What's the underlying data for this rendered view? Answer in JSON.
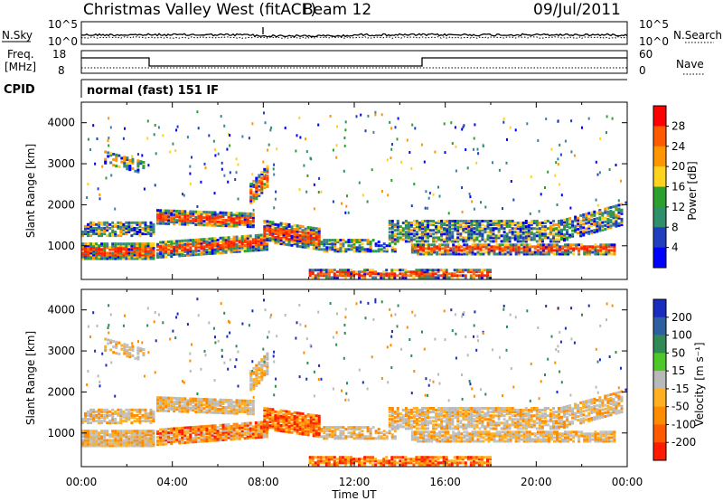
{
  "header": {
    "station": "Christmas Valley West (fitACF)",
    "beam": "Beam 12",
    "date": "09/Jul/2011"
  },
  "top_strip": {
    "nsky_label": "N.Sky",
    "nsky_ticks": [
      "10^5",
      "10^0"
    ],
    "nsearch_label": "N.Search",
    "nsearch_ticks": [
      "10^5",
      "10^0"
    ],
    "freq_label_line1": "Freq.",
    "freq_label_line2": "[MHz]",
    "freq_ticks": [
      "18",
      "8"
    ],
    "nave_label": "Nave",
    "nave_ticks": [
      "60",
      "0"
    ],
    "cpid_label": "CPID",
    "cpid_text": "normal (fast) 151 IF"
  },
  "chart_data": [
    {
      "type": "heatmap",
      "name": "power",
      "ylabel": "Slant Range [km]",
      "yticks": [
        "4000",
        "3000",
        "2000",
        "1000"
      ],
      "yticks_values": [
        4000,
        3000,
        2000,
        1000
      ],
      "ylim": [
        180,
        4500
      ],
      "xlim_hours": [
        0,
        24
      ],
      "colorbar_label": "Power [dB]",
      "colorbar_ticks": [
        "28",
        "24",
        "20",
        "16",
        "12",
        "8",
        "4"
      ],
      "colorbar_colors": [
        "#ff0000",
        "#ff5a00",
        "#ff9500",
        "#ffd21e",
        "#2ca02c",
        "#2f8f6a",
        "#1f3fbf",
        "#0000ff"
      ]
    },
    {
      "type": "heatmap",
      "name": "velocity",
      "ylabel": "Slant Range [km]",
      "yticks": [
        "4000",
        "3000",
        "2000",
        "1000"
      ],
      "yticks_values": [
        4000,
        3000,
        2000,
        1000
      ],
      "ylim": [
        180,
        4500
      ],
      "xlim_hours": [
        0,
        24
      ],
      "xlabel": "Time UT",
      "xticks": [
        "00:00",
        "04:00",
        "08:00",
        "12:00",
        "16:00",
        "20:00",
        "00:00"
      ],
      "xticks_hours": [
        0,
        4,
        8,
        12,
        16,
        20,
        24
      ],
      "colorbar_label": "Velocity [m s⁻¹]",
      "colorbar_ticks": [
        "200",
        "100",
        "50",
        "15",
        "-15",
        "-50",
        "-100",
        "-200"
      ],
      "colorbar_colors": [
        "#1a2bbf",
        "#2e5fa0",
        "#2f8a55",
        "#4ec826",
        "#b9b9b9",
        "#ffb020",
        "#ff8c00",
        "#ff5a00",
        "#ff1a00"
      ]
    }
  ]
}
